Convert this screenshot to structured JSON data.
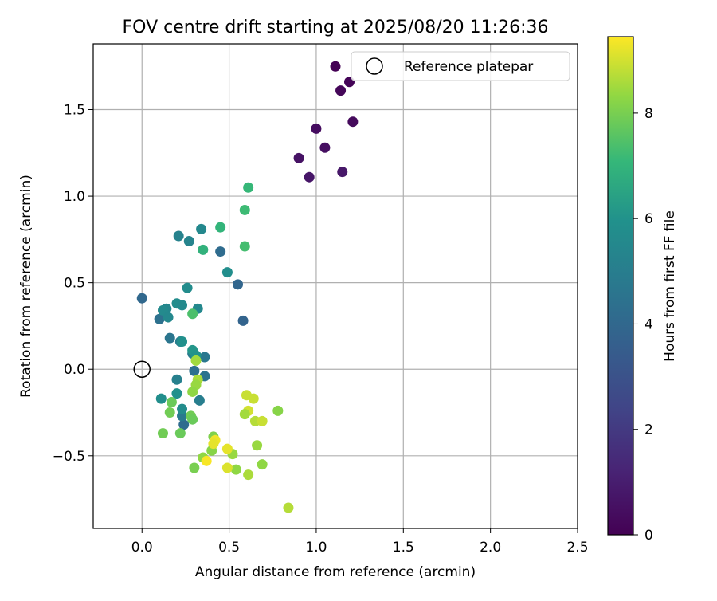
{
  "chart_data": {
    "type": "scatter",
    "title": "FOV centre drift starting at 2025/08/20 11:26:36",
    "xlabel": "Angular distance from reference (arcmin)",
    "ylabel": "Rotation from reference (arcmin)",
    "xlim": [
      -0.28,
      2.5
    ],
    "ylim": [
      -0.92,
      1.88
    ],
    "xticks": [
      0.0,
      0.5,
      1.0,
      1.5,
      2.0,
      2.5
    ],
    "yticks": [
      -0.5,
      0.0,
      0.5,
      1.0,
      1.5
    ],
    "xtick_labels": [
      "0.0",
      "0.5",
      "1.0",
      "1.5",
      "2.0",
      "2.5"
    ],
    "ytick_labels": [
      "−0.5",
      "0.0",
      "0.5",
      "1.0",
      "1.5"
    ],
    "grid": true,
    "legend": {
      "position": "top-right",
      "entries": [
        "Reference platepar"
      ]
    },
    "reference_point": {
      "label": "Reference platepar",
      "x": 0.0,
      "y": 0.0,
      "marker": "open-circle"
    },
    "colorbar": {
      "label": "Hours from first FF file",
      "colormap": "viridis",
      "range": [
        0,
        9.45
      ],
      "ticks": [
        0,
        2,
        4,
        6,
        8
      ],
      "tick_labels": [
        "0",
        "2",
        "4",
        "6",
        "8"
      ]
    },
    "points": [
      {
        "x": 1.11,
        "y": 1.75,
        "h": 0.0
      },
      {
        "x": 1.19,
        "y": 1.66,
        "h": 0.1
      },
      {
        "x": 1.14,
        "y": 1.61,
        "h": 0.2
      },
      {
        "x": 1.21,
        "y": 1.43,
        "h": 0.3
      },
      {
        "x": 1.0,
        "y": 1.39,
        "h": 0.4
      },
      {
        "x": 1.05,
        "y": 1.28,
        "h": 0.5
      },
      {
        "x": 0.9,
        "y": 1.22,
        "h": 0.6
      },
      {
        "x": 0.96,
        "y": 1.11,
        "h": 0.7
      },
      {
        "x": 1.15,
        "y": 1.14,
        "h": 0.8
      },
      {
        "x": 0.0,
        "y": 0.41,
        "h": 4.0
      },
      {
        "x": 0.45,
        "y": 0.68,
        "h": 4.2
      },
      {
        "x": 0.55,
        "y": 0.49,
        "h": 3.9
      },
      {
        "x": 0.58,
        "y": 0.28,
        "h": 3.8
      },
      {
        "x": 0.1,
        "y": 0.29,
        "h": 4.4
      },
      {
        "x": 0.16,
        "y": 0.18,
        "h": 4.6
      },
      {
        "x": 0.3,
        "y": -0.01,
        "h": 4.3
      },
      {
        "x": 0.36,
        "y": 0.07,
        "h": 4.7
      },
      {
        "x": 0.36,
        "y": -0.04,
        "h": 4.5
      },
      {
        "x": 0.24,
        "y": -0.32,
        "h": 4.2
      },
      {
        "x": 0.29,
        "y": 0.09,
        "h": 4.9
      },
      {
        "x": 0.22,
        "y": 0.16,
        "h": 5.0
      },
      {
        "x": 0.2,
        "y": -0.06,
        "h": 5.1
      },
      {
        "x": 0.23,
        "y": -0.27,
        "h": 4.8
      },
      {
        "x": 0.33,
        "y": -0.18,
        "h": 5.0
      },
      {
        "x": 0.21,
        "y": 0.77,
        "h": 5.2
      },
      {
        "x": 0.27,
        "y": 0.74,
        "h": 5.3
      },
      {
        "x": 0.34,
        "y": 0.81,
        "h": 5.5
      },
      {
        "x": 0.14,
        "y": 0.35,
        "h": 5.4
      },
      {
        "x": 0.12,
        "y": 0.34,
        "h": 5.6
      },
      {
        "x": 0.15,
        "y": 0.3,
        "h": 5.5
      },
      {
        "x": 0.2,
        "y": 0.38,
        "h": 5.7
      },
      {
        "x": 0.23,
        "y": 0.37,
        "h": 5.6
      },
      {
        "x": 0.26,
        "y": 0.47,
        "h": 5.7
      },
      {
        "x": 0.32,
        "y": 0.35,
        "h": 5.5
      },
      {
        "x": 0.49,
        "y": 0.56,
        "h": 5.8
      },
      {
        "x": 0.23,
        "y": 0.16,
        "h": 5.9
      },
      {
        "x": 0.29,
        "y": 0.11,
        "h": 6.1
      },
      {
        "x": 0.31,
        "y": 0.08,
        "h": 6.0
      },
      {
        "x": 0.11,
        "y": -0.17,
        "h": 5.8
      },
      {
        "x": 0.2,
        "y": -0.14,
        "h": 5.9
      },
      {
        "x": 0.23,
        "y": -0.23,
        "h": 5.7
      },
      {
        "x": 0.35,
        "y": 0.69,
        "h": 6.9
      },
      {
        "x": 0.45,
        "y": 0.82,
        "h": 7.0
      },
      {
        "x": 0.61,
        "y": 1.05,
        "h": 7.1
      },
      {
        "x": 0.59,
        "y": 0.92,
        "h": 7.2
      },
      {
        "x": 0.59,
        "y": 0.71,
        "h": 7.3
      },
      {
        "x": 0.29,
        "y": 0.32,
        "h": 7.4
      },
      {
        "x": 0.31,
        "y": 0.05,
        "h": 8.5
      },
      {
        "x": 0.32,
        "y": -0.06,
        "h": 8.6
      },
      {
        "x": 0.31,
        "y": -0.09,
        "h": 8.4
      },
      {
        "x": 0.29,
        "y": -0.13,
        "h": 8.3
      },
      {
        "x": 0.17,
        "y": -0.19,
        "h": 7.8
      },
      {
        "x": 0.16,
        "y": -0.25,
        "h": 7.9
      },
      {
        "x": 0.28,
        "y": -0.27,
        "h": 7.9
      },
      {
        "x": 0.29,
        "y": -0.29,
        "h": 7.8
      },
      {
        "x": 0.12,
        "y": -0.37,
        "h": 7.9
      },
      {
        "x": 0.22,
        "y": -0.37,
        "h": 7.8
      },
      {
        "x": 0.41,
        "y": -0.39,
        "h": 8.1
      },
      {
        "x": 0.4,
        "y": -0.47,
        "h": 8.2
      },
      {
        "x": 0.35,
        "y": -0.51,
        "h": 8.3
      },
      {
        "x": 0.3,
        "y": -0.57,
        "h": 8.0
      },
      {
        "x": 0.54,
        "y": -0.58,
        "h": 8.3
      },
      {
        "x": 0.52,
        "y": -0.49,
        "h": 8.4
      },
      {
        "x": 0.6,
        "y": -0.15,
        "h": 8.9
      },
      {
        "x": 0.64,
        "y": -0.17,
        "h": 8.9
      },
      {
        "x": 0.61,
        "y": -0.24,
        "h": 9.0
      },
      {
        "x": 0.59,
        "y": -0.26,
        "h": 8.5
      },
      {
        "x": 0.65,
        "y": -0.3,
        "h": 8.7
      },
      {
        "x": 0.69,
        "y": -0.3,
        "h": 8.9
      },
      {
        "x": 0.78,
        "y": -0.24,
        "h": 8.2
      },
      {
        "x": 0.66,
        "y": -0.44,
        "h": 8.4
      },
      {
        "x": 0.69,
        "y": -0.55,
        "h": 8.3
      },
      {
        "x": 0.61,
        "y": -0.61,
        "h": 8.6
      },
      {
        "x": 0.84,
        "y": -0.8,
        "h": 8.7
      },
      {
        "x": 0.42,
        "y": -0.41,
        "h": 9.3
      },
      {
        "x": 0.41,
        "y": -0.43,
        "h": 9.2
      },
      {
        "x": 0.37,
        "y": -0.53,
        "h": 9.4
      },
      {
        "x": 0.49,
        "y": -0.46,
        "h": 9.2
      },
      {
        "x": 0.49,
        "y": -0.57,
        "h": 9.1
      }
    ]
  }
}
